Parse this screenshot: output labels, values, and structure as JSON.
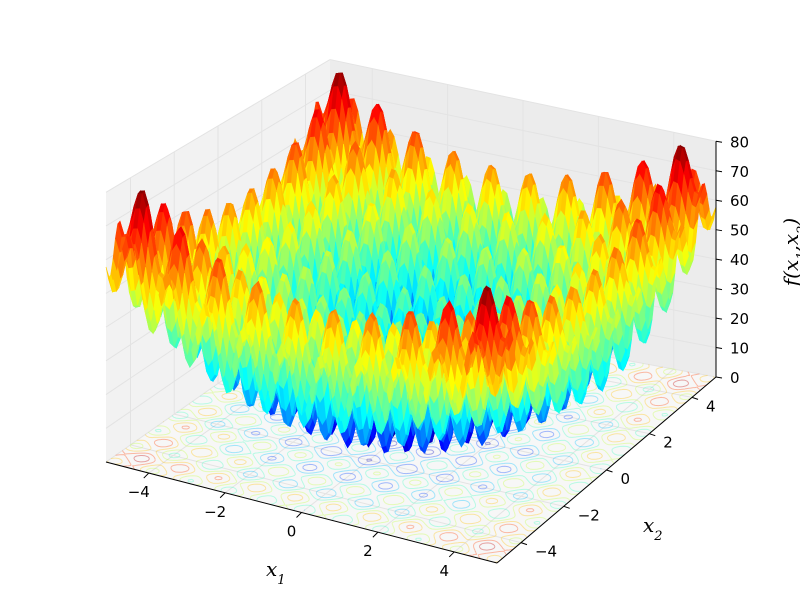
{
  "chart_data": {
    "type": "surface3d",
    "function": "rastrigin",
    "xlabel": "x_1",
    "ylabel": "x_2",
    "zlabel": "f(x_1,x_2)",
    "x_range": [
      -5.12,
      5.12
    ],
    "y_range": [
      -5.12,
      5.12
    ],
    "zlim": [
      0,
      80
    ],
    "x_ticks": [
      -4,
      -2,
      0,
      2,
      4
    ],
    "y_ticks": [
      -4,
      -2,
      0,
      2,
      4
    ],
    "z_ticks": [
      0,
      10,
      20,
      30,
      40,
      50,
      60,
      70,
      80
    ],
    "x_tick_labels": [
      "−4",
      "−2",
      "0",
      "2",
      "4"
    ],
    "y_tick_labels": [
      "−4",
      "−2",
      "0",
      "2",
      "4"
    ],
    "z_tick_labels": [
      "0",
      "10",
      "20",
      "30",
      "40",
      "50",
      "60",
      "70",
      "80"
    ],
    "colormap": "jet",
    "contour_projection": "floor",
    "grid": true
  }
}
